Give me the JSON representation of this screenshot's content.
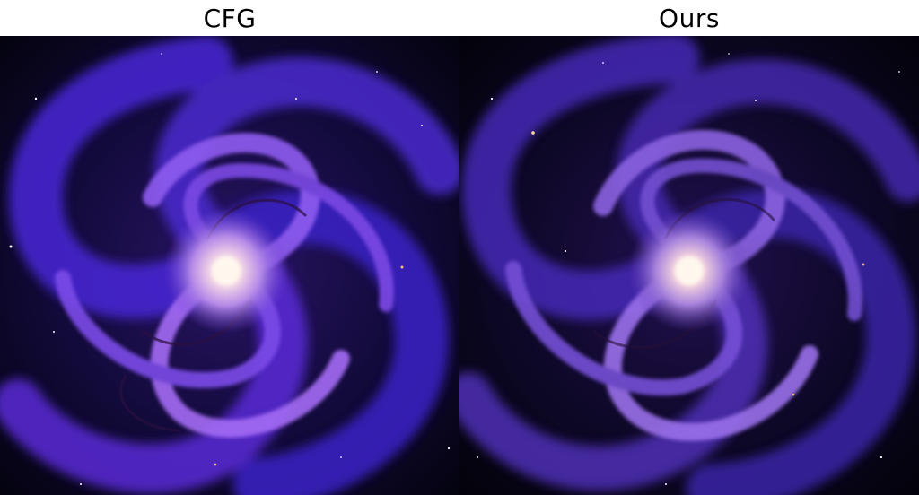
{
  "panels": [
    {
      "label": "CFG",
      "image": "spiral-galaxy-purple"
    },
    {
      "label": "Ours",
      "image": "spiral-galaxy-purple"
    }
  ]
}
